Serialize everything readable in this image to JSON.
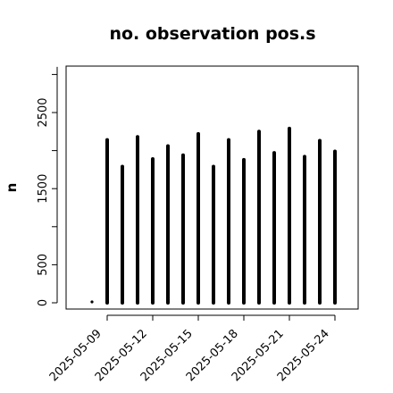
{
  "chart_data": {
    "type": "bar",
    "title": "no. observation pos.s",
    "xlabel": "",
    "ylabel": "n",
    "ylim": [
      0,
      3100
    ],
    "y_ticks": [
      0,
      500,
      1500,
      2500
    ],
    "grid": false,
    "x_ticks": [
      {
        "date": "2025-05-09",
        "color": "#000000"
      },
      {
        "date": "2025-05-12",
        "color": "#000000"
      },
      {
        "date": "2025-05-15",
        "color": "#228B22"
      },
      {
        "date": "2025-05-18",
        "color": "#000000"
      },
      {
        "date": "2025-05-21",
        "color": "#000000"
      },
      {
        "date": "2025-05-24",
        "color": "#000000"
      }
    ],
    "x": [
      "2025-05-08",
      "2025-05-09",
      "2025-05-10",
      "2025-05-11",
      "2025-05-12",
      "2025-05-13",
      "2025-05-14",
      "2025-05-15",
      "2025-05-16",
      "2025-05-17",
      "2025-05-18",
      "2025-05-19",
      "2025-05-20",
      "2025-05-21",
      "2025-05-22",
      "2025-05-23",
      "2025-05-24"
    ],
    "values": [
      20,
      2140,
      1790,
      2180,
      1890,
      2060,
      1940,
      2220,
      1790,
      2140,
      1880,
      2250,
      1970,
      2290,
      1920,
      2130,
      1990
    ],
    "bar_color": "#000000"
  }
}
